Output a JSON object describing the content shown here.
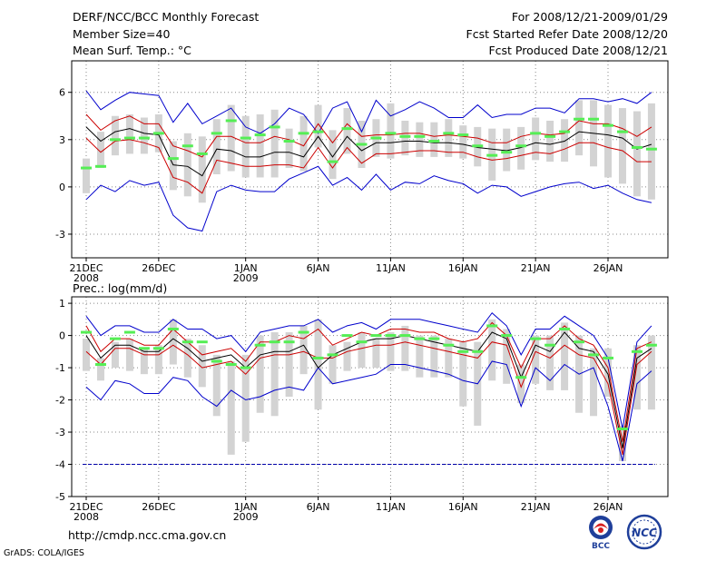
{
  "header": {
    "title": "DERF/NCC/BCC Monthly Forecast",
    "member_size": "Member Size=40",
    "variable_top": "Mean Surf. Temp.: °C",
    "forecast_for": "For 2008/12/21-2009/01/29",
    "fcst_started": "Fcst Started Refer Date 2008/12/20",
    "fcst_produced": "Fcst Produced Date 2008/12/21"
  },
  "footer": {
    "url": "http://cmdp.ncc.cma.gov.cn",
    "grads": "GrADS: COLA/IGES",
    "logo_left": "BCC",
    "logo_right": "NCC"
  },
  "colors": {
    "ensemble_bar": "#d3d3d3",
    "mean_line": "#000000",
    "outer_envelope": "#0000cc",
    "inner_envelope": "#cc0000",
    "observation": "#55ee55",
    "reference_line": "#0000aa"
  },
  "chart_data": [
    {
      "type": "line",
      "title": "Mean Surf. Temp.: °C",
      "x": [
        1,
        2,
        3,
        4,
        5,
        6,
        7,
        8,
        9,
        10,
        11,
        12,
        13,
        14,
        15,
        16,
        17,
        18,
        19,
        20,
        21,
        22,
        23,
        24,
        25,
        26,
        27,
        28,
        29,
        30,
        31,
        32,
        33,
        34,
        35,
        36,
        37,
        38,
        39,
        40
      ],
      "xtick_labels": [
        {
          "day": 1,
          "label": "21DEC",
          "label2": "2008"
        },
        {
          "day": 6,
          "label": "26DEC"
        },
        {
          "day": 12,
          "label": "1JAN",
          "label2": "2009"
        },
        {
          "day": 17,
          "label": "6JAN"
        },
        {
          "day": 22,
          "label": "11JAN"
        },
        {
          "day": 27,
          "label": "16JAN"
        },
        {
          "day": 32,
          "label": "21JAN"
        },
        {
          "day": 37,
          "label": "26JAN"
        }
      ],
      "ylim": [
        -4.5,
        8.0
      ],
      "yticks": [
        -3,
        0,
        3,
        6
      ],
      "series": [
        {
          "name": "ensemble max",
          "values": [
            6.1,
            4.9,
            5.5,
            6.0,
            5.9,
            5.8,
            4.1,
            5.3,
            4.0,
            4.5,
            5.0,
            3.8,
            3.4,
            4.0,
            5.0,
            4.6,
            3.4,
            5.0,
            5.4,
            3.5,
            5.5,
            4.5,
            4.9,
            5.4,
            5.0,
            4.4,
            4.4,
            5.2,
            4.4,
            4.6,
            4.6,
            5.0,
            5.0,
            4.7,
            5.6,
            5.6,
            5.4,
            5.6,
            5.3,
            6.0
          ]
        },
        {
          "name": "ensemble min",
          "values": [
            -0.8,
            0.1,
            -0.3,
            0.4,
            0.1,
            0.3,
            -1.8,
            -2.6,
            -2.8,
            -0.3,
            0.1,
            -0.2,
            -0.3,
            -0.3,
            0.5,
            0.9,
            1.3,
            0.1,
            0.6,
            -0.2,
            0.8,
            -0.2,
            0.3,
            0.2,
            0.7,
            0.4,
            0.2,
            -0.4,
            0.1,
            0.0,
            -0.6,
            -0.3,
            0.0,
            0.2,
            0.3,
            -0.1,
            0.1,
            -0.4,
            -0.8,
            -1.0
          ]
        },
        {
          "name": "upper spread",
          "values": [
            4.6,
            3.6,
            4.2,
            4.5,
            4.0,
            4.0,
            2.6,
            2.3,
            1.9,
            3.2,
            3.2,
            2.8,
            2.8,
            3.2,
            3.0,
            2.6,
            4.0,
            2.8,
            4.0,
            3.2,
            3.3,
            3.3,
            3.4,
            3.4,
            3.2,
            3.3,
            3.2,
            3.1,
            2.8,
            2.8,
            3.2,
            3.4,
            3.3,
            3.4,
            4.2,
            4.0,
            4.0,
            3.7,
            3.2,
            3.8
          ]
        },
        {
          "name": "lower spread",
          "values": [
            3.1,
            2.2,
            2.9,
            3.0,
            2.8,
            2.5,
            0.6,
            0.3,
            -0.4,
            1.7,
            1.5,
            1.3,
            1.3,
            1.4,
            1.4,
            1.2,
            2.5,
            1.2,
            2.5,
            1.5,
            2.1,
            2.1,
            2.2,
            2.3,
            2.3,
            2.2,
            2.2,
            1.9,
            1.7,
            1.8,
            2.0,
            2.2,
            2.1,
            2.4,
            2.8,
            2.8,
            2.5,
            2.3,
            1.6,
            1.6
          ]
        },
        {
          "name": "ensemble mean",
          "values": [
            3.8,
            2.9,
            3.5,
            3.7,
            3.4,
            3.3,
            1.4,
            1.3,
            0.7,
            2.4,
            2.3,
            1.9,
            1.9,
            2.2,
            2.2,
            1.9,
            3.2,
            1.9,
            3.2,
            2.3,
            2.8,
            2.8,
            2.9,
            2.9,
            2.8,
            2.8,
            2.7,
            2.5,
            2.4,
            2.3,
            2.5,
            2.8,
            2.7,
            2.9,
            3.5,
            3.4,
            3.3,
            3.1,
            2.4,
            2.7
          ]
        },
        {
          "name": "observation",
          "values": [
            1.2,
            1.3,
            3.0,
            3.1,
            3.1,
            3.4,
            1.8,
            2.6,
            2.1,
            3.4,
            4.2,
            3.1,
            3.3,
            3.8,
            2.9,
            3.4,
            3.5,
            1.6,
            3.7,
            2.7,
            3.1,
            3.4,
            3.2,
            3.2,
            2.9,
            3.4,
            3.3,
            2.6,
            2.0,
            2.2,
            2.6,
            3.4,
            3.2,
            3.5,
            4.3,
            4.3,
            3.9,
            3.5,
            2.5,
            2.4
          ]
        },
        {
          "name": "bar top",
          "values": [
            1.8,
            3.5,
            4.5,
            4.6,
            4.4,
            4.6,
            2.9,
            3.4,
            3.2,
            4.3,
            5.2,
            4.5,
            4.6,
            4.9,
            3.7,
            4.5,
            5.2,
            3.6,
            5.0,
            4.2,
            4.3,
            5.3,
            4.2,
            4.1,
            4.1,
            4.3,
            3.9,
            3.8,
            3.7,
            3.7,
            3.8,
            4.4,
            4.2,
            4.3,
            5.5,
            5.5,
            5.2,
            5.0,
            4.8,
            5.3
          ]
        },
        {
          "name": "bar bottom",
          "values": [
            -0.4,
            1.2,
            2.0,
            2.1,
            2.1,
            2.2,
            -0.2,
            -0.6,
            -1.0,
            0.8,
            1.0,
            0.6,
            0.6,
            0.6,
            1.2,
            1.0,
            2.5,
            0.5,
            2.1,
            1.2,
            1.9,
            1.8,
            2.0,
            1.9,
            1.9,
            1.9,
            1.8,
            1.3,
            0.4,
            1.0,
            1.1,
            1.7,
            1.6,
            1.6,
            2.0,
            1.3,
            0.6,
            0.2,
            -0.6,
            -0.8
          ]
        }
      ]
    },
    {
      "type": "line",
      "title": "Prec.: log(mm/d)",
      "x": [
        1,
        2,
        3,
        4,
        5,
        6,
        7,
        8,
        9,
        10,
        11,
        12,
        13,
        14,
        15,
        16,
        17,
        18,
        19,
        20,
        21,
        22,
        23,
        24,
        25,
        26,
        27,
        28,
        29,
        30,
        31,
        32,
        33,
        34,
        35,
        36,
        37,
        38,
        39,
        40
      ],
      "xtick_labels": [
        {
          "day": 1,
          "label": "21DEC",
          "label2": "2008"
        },
        {
          "day": 6,
          "label": "26DEC"
        },
        {
          "day": 12,
          "label": "1JAN",
          "label2": "2009"
        },
        {
          "day": 17,
          "label": "6JAN"
        },
        {
          "day": 22,
          "label": "11JAN"
        },
        {
          "day": 27,
          "label": "16JAN"
        },
        {
          "day": 32,
          "label": "21JAN"
        },
        {
          "day": 37,
          "label": "26JAN"
        }
      ],
      "ylim": [
        -5,
        1.2
      ],
      "yticks": [
        -5,
        -4,
        -3,
        -2,
        -1,
        0,
        1
      ],
      "reference_value": -4,
      "series": [
        {
          "name": "ensemble max",
          "values": [
            0.6,
            0.0,
            0.3,
            0.3,
            0.1,
            0.1,
            0.5,
            0.2,
            0.2,
            -0.1,
            0.0,
            -0.5,
            0.1,
            0.2,
            0.3,
            0.3,
            0.5,
            0.1,
            0.3,
            0.4,
            0.2,
            0.5,
            0.5,
            0.5,
            0.4,
            0.3,
            0.2,
            0.1,
            0.7,
            0.3,
            -0.6,
            0.2,
            0.2,
            0.6,
            0.3,
            0.0,
            -0.7,
            -2.9,
            -0.2,
            0.3
          ]
        },
        {
          "name": "ensemble min",
          "values": [
            -1.6,
            -2.0,
            -1.4,
            -1.5,
            -1.8,
            -1.8,
            -1.3,
            -1.4,
            -1.9,
            -2.2,
            -1.7,
            -2.0,
            -1.9,
            -1.7,
            -1.6,
            -1.7,
            -1.0,
            -1.5,
            -1.4,
            -1.3,
            -1.2,
            -0.9,
            -0.9,
            -1.0,
            -1.1,
            -1.2,
            -1.4,
            -1.5,
            -0.8,
            -0.9,
            -2.2,
            -1.0,
            -1.4,
            -0.9,
            -1.2,
            -1.0,
            -2.2,
            -3.9,
            -1.5,
            -1.1
          ]
        },
        {
          "name": "upper spread",
          "values": [
            0.3,
            -0.5,
            -0.1,
            -0.1,
            -0.3,
            -0.3,
            0.2,
            -0.2,
            -0.6,
            -0.5,
            -0.4,
            -0.8,
            -0.2,
            -0.2,
            0.0,
            -0.1,
            0.2,
            -0.3,
            -0.1,
            0.1,
            0.0,
            0.2,
            0.2,
            0.1,
            0.1,
            -0.1,
            -0.2,
            -0.1,
            0.4,
            0.0,
            -1.0,
            -0.1,
            -0.1,
            0.3,
            -0.1,
            -0.3,
            -1.0,
            -3.3,
            -0.4,
            -0.2
          ]
        },
        {
          "name": "lower spread",
          "values": [
            -0.5,
            -0.9,
            -0.4,
            -0.4,
            -0.6,
            -0.6,
            -0.3,
            -0.6,
            -1.0,
            -0.9,
            -0.8,
            -1.2,
            -0.7,
            -0.6,
            -0.6,
            -0.5,
            -0.7,
            -0.7,
            -0.5,
            -0.4,
            -0.3,
            -0.3,
            -0.2,
            -0.3,
            -0.4,
            -0.5,
            -0.6,
            -0.7,
            -0.2,
            -0.3,
            -1.6,
            -0.5,
            -0.7,
            -0.3,
            -0.6,
            -0.7,
            -1.5,
            -3.7,
            -0.9,
            -0.5
          ]
        },
        {
          "name": "ensemble mean",
          "values": [
            0.0,
            -0.7,
            -0.3,
            -0.3,
            -0.5,
            -0.5,
            -0.1,
            -0.4,
            -0.8,
            -0.7,
            -0.6,
            -1.0,
            -0.6,
            -0.5,
            -0.5,
            -0.3,
            -1.0,
            -0.6,
            -0.4,
            -0.2,
            -0.1,
            -0.1,
            0.0,
            -0.1,
            -0.2,
            -0.3,
            -0.4,
            -0.5,
            0.1,
            -0.1,
            -1.3,
            -0.3,
            -0.5,
            0.1,
            -0.4,
            -0.5,
            -1.2,
            -3.5,
            -0.7,
            -0.4
          ]
        },
        {
          "name": "observation",
          "values": [
            0.1,
            -0.9,
            -0.1,
            0.1,
            -0.4,
            -0.4,
            0.2,
            -0.2,
            -0.2,
            -0.8,
            -0.9,
            -1.0,
            -0.3,
            -0.2,
            -0.2,
            0.1,
            -0.7,
            -0.6,
            0.0,
            -0.2,
            0.0,
            0.0,
            0.0,
            -0.1,
            -0.1,
            -0.3,
            -0.5,
            -0.5,
            0.3,
            0.0,
            -1.3,
            -0.1,
            -0.3,
            0.2,
            -0.2,
            -0.6,
            -0.7,
            -2.9,
            -0.5,
            -0.3
          ]
        },
        {
          "name": "bar top",
          "values": [
            -0.1,
            -0.7,
            -0.2,
            -0.1,
            -0.4,
            -0.3,
            0.5,
            -0.1,
            -0.3,
            -0.6,
            -0.8,
            -0.6,
            0.0,
            0.1,
            0.1,
            0.3,
            0.5,
            -0.3,
            -0.2,
            0.1,
            -0.1,
            0.1,
            0.3,
            0.0,
            0.0,
            -0.1,
            -0.2,
            -0.2,
            0.5,
            0.2,
            -0.9,
            0.0,
            0.0,
            0.4,
            0.0,
            -0.4,
            -0.4,
            -2.8,
            -0.3,
            0.0
          ]
        },
        {
          "name": "bar bottom",
          "values": [
            -1.1,
            -1.4,
            -1.0,
            -1.1,
            -1.2,
            -1.2,
            -0.9,
            -1.3,
            -1.6,
            -2.5,
            -3.7,
            -3.3,
            -2.4,
            -2.5,
            -1.9,
            -1.2,
            -2.3,
            -1.5,
            -1.1,
            -1.0,
            -1.0,
            -1.1,
            -1.1,
            -1.3,
            -1.3,
            -1.3,
            -2.2,
            -2.8,
            -1.4,
            -1.5,
            -2.1,
            -1.5,
            -1.7,
            -1.7,
            -2.4,
            -2.5,
            -1.9,
            -3.9,
            -2.3,
            -2.3
          ]
        }
      ]
    }
  ]
}
